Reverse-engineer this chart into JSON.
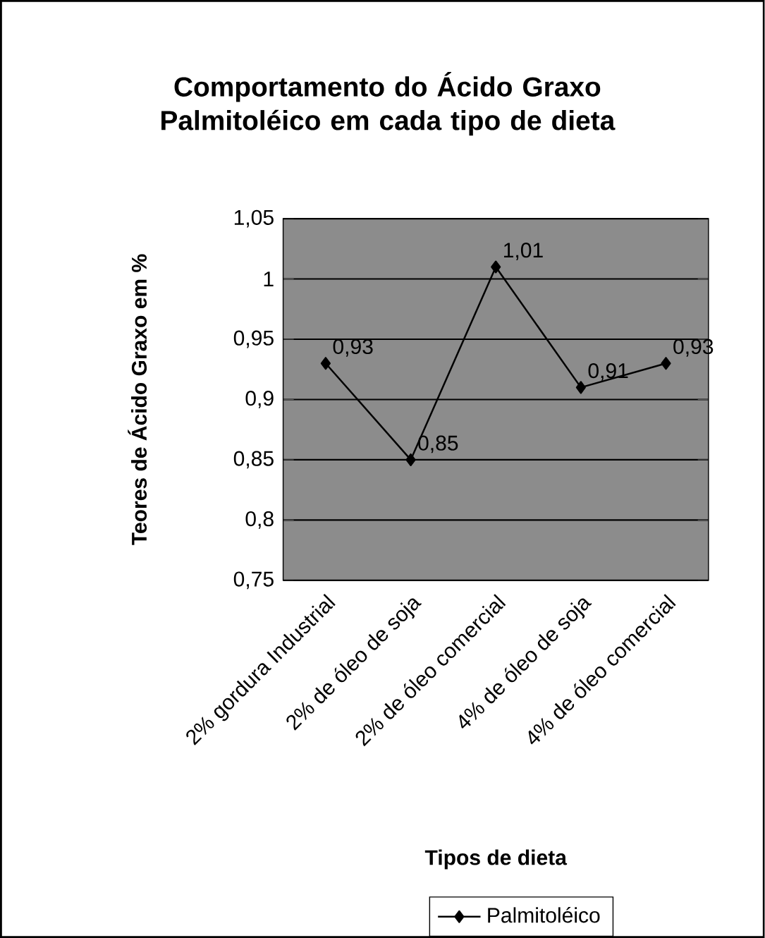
{
  "chart_data": {
    "type": "line",
    "title": "Comportamento do Ácido Graxo Palmitoléico em cada tipo de dieta",
    "xlabel": "Tipos de dieta",
    "ylabel": "Teores de Ácido Graxo em %",
    "categories": [
      "2% gordura Industrial",
      "2% de óleo de soja",
      "2% de óleo comercial",
      "4% de óleo de soja",
      "4% de óleo comercial"
    ],
    "series": [
      {
        "name": "Palmitoléico",
        "color": "#000000",
        "values": [
          0.93,
          0.85,
          1.01,
          0.91,
          0.93
        ],
        "value_labels": [
          "0,93",
          "0,85",
          "1,01",
          "0,91",
          "0,93"
        ]
      }
    ],
    "ylim": [
      0.75,
      1.05
    ],
    "yticks": [
      {
        "value": 0.75,
        "label": "0,75"
      },
      {
        "value": 0.8,
        "label": "0,8"
      },
      {
        "value": 0.85,
        "label": "0,85"
      },
      {
        "value": 0.9,
        "label": "0,9"
      },
      {
        "value": 0.95,
        "label": "0,95"
      },
      1,
      {
        "value": 1.05,
        "label": "1,05"
      }
    ],
    "grid": "y",
    "legend": "bottom",
    "marker": "diamond",
    "line_style": "solid"
  }
}
